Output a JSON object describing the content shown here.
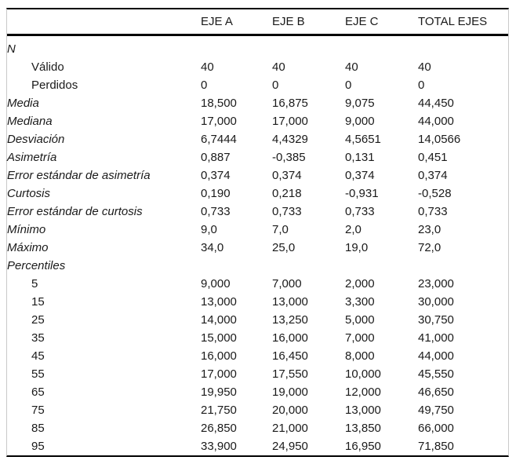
{
  "accent_colors": {
    "rule_color": "#000000",
    "side_border_color": "#c9c9c9",
    "text_color": "#1a1a1a",
    "background": "#ffffff"
  },
  "chart_data": {
    "type": "table",
    "title": "",
    "columns": [
      "",
      "EJE A",
      "EJE B",
      "EJE C",
      "TOTAL EJES"
    ],
    "rows": [
      {
        "label": "N",
        "italic": true,
        "indent": false,
        "values": [
          "",
          "",
          "",
          ""
        ]
      },
      {
        "label": "Válido",
        "italic": false,
        "indent": true,
        "values": [
          "40",
          "40",
          "40",
          "40"
        ]
      },
      {
        "label": "Perdidos",
        "italic": false,
        "indent": true,
        "values": [
          "0",
          "0",
          "0",
          "0"
        ]
      },
      {
        "label": "Media",
        "italic": true,
        "indent": false,
        "values": [
          "18,500",
          "16,875",
          "9,075",
          "44,450"
        ]
      },
      {
        "label": "Mediana",
        "italic": true,
        "indent": false,
        "values": [
          "17,000",
          "17,000",
          "9,000",
          "44,000"
        ]
      },
      {
        "label": "Desviación",
        "italic": true,
        "indent": false,
        "values": [
          "6,7444",
          "4,4329",
          "4,5651",
          "14,0566"
        ]
      },
      {
        "label": "Asimetría",
        "italic": true,
        "indent": false,
        "values": [
          "0,887",
          "-0,385",
          "0,131",
          "0,451"
        ]
      },
      {
        "label": "Error estándar de asimetría",
        "italic": true,
        "indent": false,
        "values": [
          "0,374",
          "0,374",
          "0,374",
          "0,374"
        ]
      },
      {
        "label": "Curtosis",
        "italic": true,
        "indent": false,
        "values": [
          "0,190",
          "0,218",
          "-0,931",
          "-0,528"
        ]
      },
      {
        "label": "Error estándar de curtosis",
        "italic": true,
        "indent": false,
        "values": [
          "0,733",
          "0,733",
          "0,733",
          "0,733"
        ]
      },
      {
        "label": "Mínimo",
        "italic": true,
        "indent": false,
        "values": [
          "9,0",
          "7,0",
          "2,0",
          "23,0"
        ]
      },
      {
        "label": "Máximo",
        "italic": true,
        "indent": false,
        "values": [
          "34,0",
          "25,0",
          "19,0",
          "72,0"
        ]
      },
      {
        "label": "Percentiles",
        "italic": true,
        "indent": false,
        "values": [
          "",
          "",
          "",
          ""
        ]
      },
      {
        "label": "5",
        "italic": false,
        "indent": true,
        "values": [
          "9,000",
          "7,000",
          "2,000",
          "23,000"
        ]
      },
      {
        "label": "15",
        "italic": false,
        "indent": true,
        "values": [
          "13,000",
          "13,000",
          "3,300",
          "30,000"
        ]
      },
      {
        "label": "25",
        "italic": false,
        "indent": true,
        "values": [
          "14,000",
          "13,250",
          "5,000",
          "30,750"
        ]
      },
      {
        "label": "35",
        "italic": false,
        "indent": true,
        "values": [
          "15,000",
          "16,000",
          "7,000",
          "41,000"
        ]
      },
      {
        "label": "45",
        "italic": false,
        "indent": true,
        "values": [
          "16,000",
          "16,450",
          "8,000",
          "44,000"
        ]
      },
      {
        "label": "55",
        "italic": false,
        "indent": true,
        "values": [
          "17,000",
          "17,550",
          "10,000",
          "45,550"
        ]
      },
      {
        "label": "65",
        "italic": false,
        "indent": true,
        "values": [
          "19,950",
          "19,000",
          "12,000",
          "46,650"
        ]
      },
      {
        "label": "75",
        "italic": false,
        "indent": true,
        "values": [
          "21,750",
          "20,000",
          "13,000",
          "49,750"
        ]
      },
      {
        "label": "85",
        "italic": false,
        "indent": true,
        "values": [
          "26,850",
          "21,000",
          "13,850",
          "66,000"
        ]
      },
      {
        "label": "95",
        "italic": false,
        "indent": true,
        "values": [
          "33,900",
          "24,950",
          "16,950",
          "71,850"
        ]
      }
    ]
  }
}
